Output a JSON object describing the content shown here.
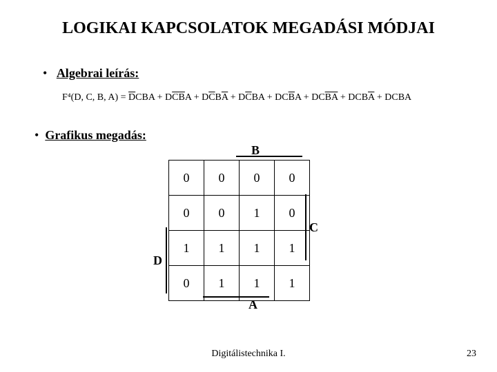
{
  "title": "LOGIKAI KAPCSOLATOK MEGADÁSI MÓDJAI",
  "bullets": {
    "b1": "Algebrai leírás:",
    "b2": "Grafikus megadás:"
  },
  "formula": {
    "lhs": "F⁴(D, C, B, A) = ",
    "terms": [
      {
        "parts": [
          {
            "t": "D",
            "ov": true
          },
          {
            "t": "CBA",
            "ov": false
          }
        ]
      },
      {
        "parts": [
          {
            "t": "D",
            "ov": false
          },
          {
            "t": "CB",
            "ov": true
          },
          {
            "t": "A",
            "ov": false
          }
        ]
      },
      {
        "parts": [
          {
            "t": "D",
            "ov": false
          },
          {
            "t": "C",
            "ov": true
          },
          {
            "t": "B",
            "ov": false
          },
          {
            "t": "A",
            "ov": true
          }
        ]
      },
      {
        "parts": [
          {
            "t": "D",
            "ov": false
          },
          {
            "t": "C",
            "ov": true
          },
          {
            "t": "BA",
            "ov": false
          }
        ]
      },
      {
        "parts": [
          {
            "t": "DC",
            "ov": false
          },
          {
            "t": "B",
            "ov": true
          },
          {
            "t": "A",
            "ov": false
          }
        ]
      },
      {
        "parts": [
          {
            "t": "DC",
            "ov": false
          },
          {
            "t": "BA",
            "ov": true
          }
        ]
      },
      {
        "parts": [
          {
            "t": "DCB",
            "ov": false
          },
          {
            "t": "A",
            "ov": true
          }
        ]
      },
      {
        "parts": [
          {
            "t": "DCBA",
            "ov": false
          }
        ]
      }
    ],
    "sep": " + "
  },
  "kmap": {
    "labels": {
      "B": "B",
      "C": "C",
      "D": "D",
      "A": "A"
    },
    "rows": [
      [
        "0",
        "0",
        "0",
        "0"
      ],
      [
        "0",
        "0",
        "1",
        "0"
      ],
      [
        "1",
        "1",
        "1",
        "1"
      ],
      [
        "0",
        "1",
        "1",
        "1"
      ]
    ]
  },
  "footer": "Digitálistechnika I.",
  "page": "23",
  "colors": {
    "text": "#000000",
    "bg": "#ffffff"
  }
}
